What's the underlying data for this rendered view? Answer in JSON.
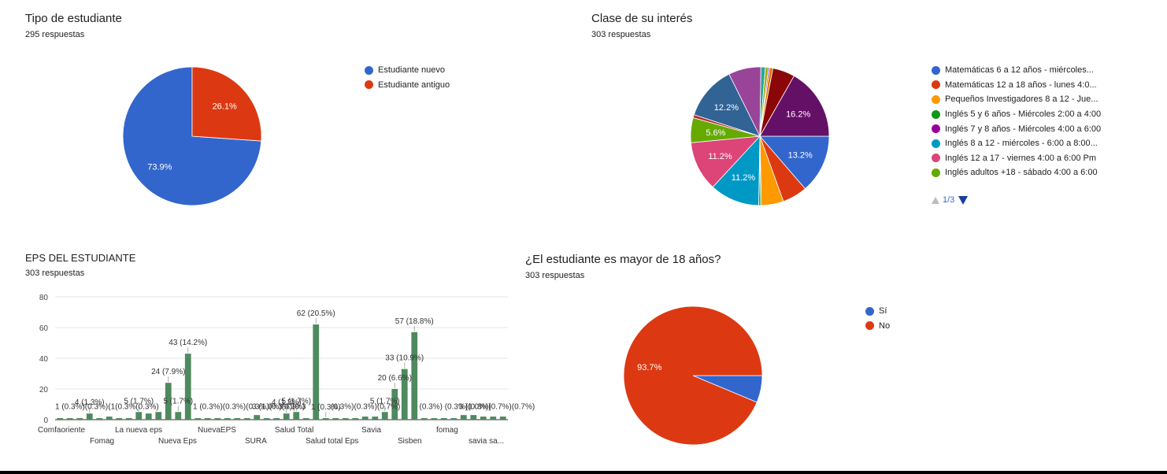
{
  "charts": {
    "tipo": {
      "title": "Tipo de estudiante",
      "subtitle": "295 respuestas",
      "chart_data": {
        "type": "pie",
        "title": "Tipo de estudiante",
        "labels": [
          "Estudiante nuevo",
          "Estudiante antiguo"
        ],
        "values": [
          73.9,
          26.1
        ],
        "slice_labels": [
          "73.9%",
          "26.1%"
        ],
        "colors": [
          "#3366cc",
          "#dc3912"
        ],
        "legend_position": "right"
      }
    },
    "clase": {
      "title": "Clase de su interés",
      "subtitle": "303 respuestas",
      "pager": {
        "text": "1/3",
        "up_icon": "triangle-up-icon",
        "down_icon": "triangle-down-icon"
      },
      "chart_data": {
        "type": "pie",
        "title": "Clase de su interés",
        "labels": [
          "Matemáticas 6 a 12 años - miércoles...",
          "Matemáticas 12 a 18 años - lunes 4:0...",
          "Pequeños Investigadores 8 a 12 - Jue...",
          "Inglés 5 y 6 años - Miércoles 2:00 a 4:00",
          "Inglés 7 y 8 años - Miércoles 4:00 a 6:00",
          "Inglés 8 a 12 - miércoles - 6:00 a 8:00...",
          "Inglés 12 a 17 - viernes 4:00 a 6:00 Pm",
          "Inglés adultos +18 - sábado 4:00 a 6:00"
        ],
        "slices": [
          {
            "value": 13.2,
            "color": "#3366cc",
            "label": "13.2%"
          },
          {
            "value": 5.6,
            "color": "#dc3912",
            "label": ""
          },
          {
            "value": 5.0,
            "color": "#ff9900",
            "label": ""
          },
          {
            "value": 0.3,
            "color": "#109618",
            "label": ""
          },
          {
            "value": 0.3,
            "color": "#990099",
            "label": ""
          },
          {
            "value": 11.2,
            "color": "#0099c6",
            "label": "11.2%"
          },
          {
            "value": 11.2,
            "color": "#dd4477",
            "label": "11.2%"
          },
          {
            "value": 5.6,
            "color": "#66aa00",
            "label": "5.6%"
          },
          {
            "value": 0.7,
            "color": "#b82e2e",
            "label": ""
          },
          {
            "value": 12.2,
            "color": "#316395",
            "label": "12.2%"
          },
          {
            "value": 7.3,
            "color": "#994499",
            "label": ""
          },
          {
            "value": 1.0,
            "color": "#22aa99",
            "label": ""
          },
          {
            "value": 0.7,
            "color": "#aaaa11",
            "label": ""
          },
          {
            "value": 0.3,
            "color": "#6633cc",
            "label": ""
          },
          {
            "value": 0.7,
            "color": "#e67300",
            "label": ""
          },
          {
            "value": 5.0,
            "color": "#8b0707",
            "label": ""
          },
          {
            "value": 16.2,
            "color": "#651067",
            "label": "16.2%"
          }
        ],
        "legend_colors": [
          "#3366cc",
          "#dc3912",
          "#ff9900",
          "#109618",
          "#990099",
          "#0099c6",
          "#dd4477",
          "#66aa00"
        ],
        "legend_position": "right"
      }
    },
    "eps": {
      "title": "EPS DEL ESTUDIANTE",
      "subtitle": "303 respuestas",
      "chart_data": {
        "type": "bar",
        "title": "EPS DEL ESTUDIANTE",
        "ylim": [
          0,
          80
        ],
        "yticks": [
          0,
          20,
          40,
          60,
          80
        ],
        "grid": true,
        "bar_color": "#4e8a5e",
        "xtick_labels_row1": [
          "Comfaoriente",
          "La nueva eps",
          "NuevaEPS",
          "Salud Total",
          "Savia",
          "fomag"
        ],
        "xtick_labels_row2": [
          "Fomag",
          "Nueva Eps",
          "SURA",
          "Salud total Eps",
          "Sisben",
          "savia sa..."
        ],
        "values": [
          1,
          1,
          1,
          4,
          1,
          2,
          1,
          1,
          5,
          4,
          5,
          24,
          5,
          43,
          1,
          1,
          1,
          1,
          1,
          1,
          3,
          1,
          1,
          4,
          5,
          1,
          62,
          1,
          1,
          1,
          1,
          2,
          2,
          5,
          20,
          33,
          57,
          1,
          1,
          1,
          1,
          3,
          3,
          2,
          2,
          2
        ],
        "labeled_bars": [
          {
            "index": 3,
            "text": "4 (1.3%)"
          },
          {
            "index": 8,
            "text": "5 (1.7%)"
          },
          {
            "index": 11,
            "text": "24 (7.9%)"
          },
          {
            "index": 12,
            "text": "5 (1.7%)"
          },
          {
            "index": 13,
            "text": "43 (14.2%)"
          },
          {
            "index": 23,
            "text": "4 (1.3%)"
          },
          {
            "index": 24,
            "text": "5 (1.7%)"
          },
          {
            "index": 26,
            "text": "62 (20.5%)"
          },
          {
            "index": 27,
            "text": "1 (0.3%)"
          },
          {
            "index": 33,
            "text": "5 (1.7%)"
          },
          {
            "index": 34,
            "text": "20 (6.6%)"
          },
          {
            "index": 35,
            "text": "33 (10.9%)"
          },
          {
            "index": 36,
            "text": "57 (18.8%)"
          }
        ],
        "crowded_label_fragments": [
          {
            "from": 0,
            "text": "1 (0.3%)(0.3%)(1(0.3%(0.3%)"
          },
          {
            "from": 14,
            "text": "1 (0.3%)(0.3%)(0.3%)(0.3%)(0.3"
          },
          {
            "from": 20,
            "text": "3 (1.0%)(0.3%)"
          },
          {
            "from": 28,
            "text": "(0.3%)(0.3%)(0.7%)"
          },
          {
            "from": 37,
            "text": "(0.3%) (0.3%)(0.3%)"
          },
          {
            "from": 41,
            "text": "3 (1.0%)(0.7%)(0.7%)"
          }
        ]
      }
    },
    "mayor": {
      "title": "¿El estudiante es mayor de 18 años?",
      "subtitle": "303 respuestas",
      "chart_data": {
        "type": "pie",
        "title": "¿El estudiante es mayor de 18 años?",
        "labels": [
          "Sí",
          "No"
        ],
        "values": [
          6.3,
          93.7
        ],
        "slice_labels": [
          "",
          "93.7%"
        ],
        "colors": [
          "#3366cc",
          "#dc3912"
        ],
        "legend_position": "right"
      }
    }
  }
}
